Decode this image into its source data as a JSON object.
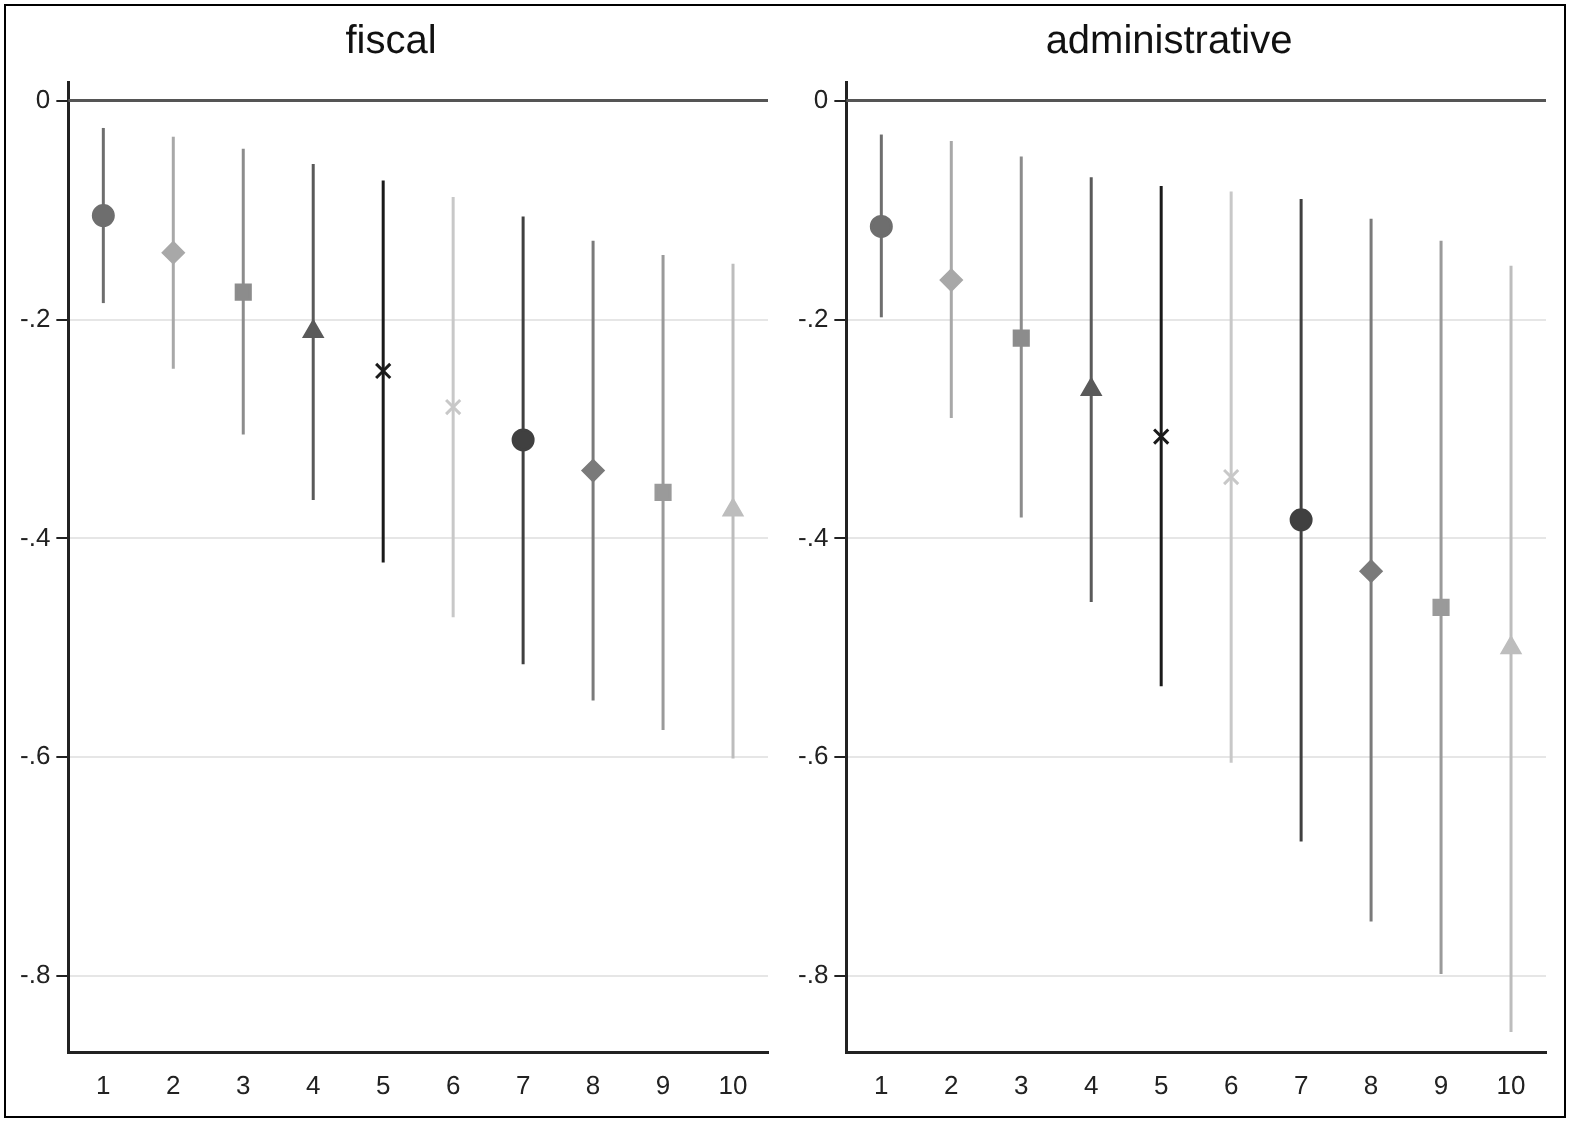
{
  "chart_data": [
    {
      "type": "scatter",
      "title": "fiscal",
      "categories": [
        "1",
        "2",
        "3",
        "4",
        "5",
        "6",
        "7",
        "8",
        "9",
        "10"
      ],
      "ylim": [
        -0.87,
        0.017
      ],
      "yticks": [
        {
          "value": -0.8,
          "label": "-.8"
        },
        {
          "value": -0.6,
          "label": "-.6"
        },
        {
          "value": -0.4,
          "label": "-.4"
        },
        {
          "value": -0.2,
          "label": "-.2"
        },
        0
      ],
      "grid": "y",
      "legend": false,
      "ref_lines": [
        {
          "axis": "y",
          "value": 0,
          "color": "#555555"
        }
      ],
      "series": [
        {
          "x": [
            "1"
          ],
          "values": [
            -0.105
          ],
          "errors": [
            [
              -0.185,
              -0.025
            ]
          ],
          "color": "#6e6e6e",
          "marker": "circle"
        },
        {
          "x": [
            "2"
          ],
          "values": [
            -0.139
          ],
          "errors": [
            [
              -0.245,
              -0.033
            ]
          ],
          "color": "#a8a8a8",
          "marker": "diamond"
        },
        {
          "x": [
            "3"
          ],
          "values": [
            -0.175
          ],
          "errors": [
            [
              -0.305,
              -0.044
            ]
          ],
          "color": "#8c8c8c",
          "marker": "square"
        },
        {
          "x": [
            "4"
          ],
          "values": [
            -0.211
          ],
          "errors": [
            [
              -0.365,
              -0.058
            ]
          ],
          "color": "#5a5a5a",
          "marker": "triangle"
        },
        {
          "x": [
            "5"
          ],
          "values": [
            -0.247
          ],
          "errors": [
            [
              -0.422,
              -0.073
            ]
          ],
          "color": "#1a1a1a",
          "marker": "cross"
        },
        {
          "x": [
            "6"
          ],
          "values": [
            -0.28
          ],
          "errors": [
            [
              -0.472,
              -0.088
            ]
          ],
          "color": "#c8c8c8",
          "marker": "cross"
        },
        {
          "x": [
            "7"
          ],
          "values": [
            -0.31
          ],
          "errors": [
            [
              -0.515,
              -0.106
            ]
          ],
          "color": "#404040",
          "marker": "circle"
        },
        {
          "x": [
            "8"
          ],
          "values": [
            -0.338
          ],
          "errors": [
            [
              -0.548,
              -0.128
            ]
          ],
          "color": "#7a7a7a",
          "marker": "diamond"
        },
        {
          "x": [
            "9"
          ],
          "values": [
            -0.358
          ],
          "errors": [
            [
              -0.575,
              -0.141
            ]
          ],
          "color": "#9a9a9a",
          "marker": "square"
        },
        {
          "x": [
            "10"
          ],
          "values": [
            -0.374
          ],
          "errors": [
            [
              -0.601,
              -0.149
            ]
          ],
          "color": "#bdbdbd",
          "marker": "triangle"
        }
      ]
    },
    {
      "type": "scatter",
      "title": "administrative",
      "categories": [
        "1",
        "2",
        "3",
        "4",
        "5",
        "6",
        "7",
        "8",
        "9",
        "10"
      ],
      "ylim": [
        -0.87,
        0.017
      ],
      "yticks": [
        {
          "value": -0.8,
          "label": "-.8"
        },
        {
          "value": -0.6,
          "label": "-.6"
        },
        {
          "value": -0.4,
          "label": "-.4"
        },
        {
          "value": -0.2,
          "label": "-.2"
        },
        0
      ],
      "grid": "y",
      "legend": false,
      "ref_lines": [
        {
          "axis": "y",
          "value": 0,
          "color": "#555555"
        }
      ],
      "series": [
        {
          "x": [
            "1"
          ],
          "values": [
            -0.115
          ],
          "errors": [
            [
              -0.198,
              -0.031
            ]
          ],
          "color": "#6e6e6e",
          "marker": "circle"
        },
        {
          "x": [
            "2"
          ],
          "values": [
            -0.164
          ],
          "errors": [
            [
              -0.29,
              -0.037
            ]
          ],
          "color": "#a8a8a8",
          "marker": "diamond"
        },
        {
          "x": [
            "3"
          ],
          "values": [
            -0.217
          ],
          "errors": [
            [
              -0.381,
              -0.051
            ]
          ],
          "color": "#8c8c8c",
          "marker": "square"
        },
        {
          "x": [
            "4"
          ],
          "values": [
            -0.264
          ],
          "errors": [
            [
              -0.458,
              -0.07
            ]
          ],
          "color": "#5a5a5a",
          "marker": "triangle"
        },
        {
          "x": [
            "5"
          ],
          "values": [
            -0.307
          ],
          "errors": [
            [
              -0.535,
              -0.078
            ]
          ],
          "color": "#1a1a1a",
          "marker": "cross"
        },
        {
          "x": [
            "6"
          ],
          "values": [
            -0.344
          ],
          "errors": [
            [
              -0.605,
              -0.083
            ]
          ],
          "color": "#c8c8c8",
          "marker": "cross"
        },
        {
          "x": [
            "7"
          ],
          "values": [
            -0.383
          ],
          "errors": [
            [
              -0.677,
              -0.09
            ]
          ],
          "color": "#404040",
          "marker": "circle"
        },
        {
          "x": [
            "8"
          ],
          "values": [
            -0.43
          ],
          "errors": [
            [
              -0.75,
              -0.108
            ]
          ],
          "color": "#7a7a7a",
          "marker": "diamond"
        },
        {
          "x": [
            "9"
          ],
          "values": [
            -0.463
          ],
          "errors": [
            [
              -0.798,
              -0.128
            ]
          ],
          "color": "#9a9a9a",
          "marker": "square"
        },
        {
          "x": [
            "10"
          ],
          "values": [
            -0.5
          ],
          "errors": [
            [
              -0.851,
              -0.151
            ]
          ],
          "color": "#bdbdbd",
          "marker": "triangle"
        }
      ]
    }
  ]
}
